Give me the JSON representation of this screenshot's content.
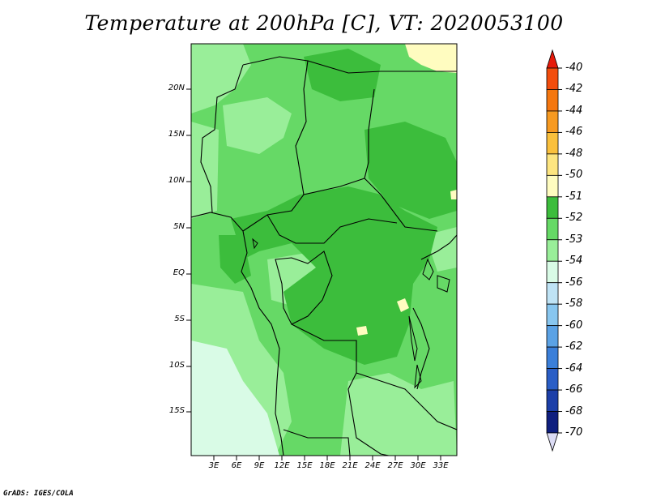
{
  "title": "Temperature at 200hPa [C], VT: 2020053100",
  "credit": "GrADS: IGES/COLA",
  "map": {
    "y_axis_labels": [
      "20N",
      "15N",
      "10N",
      "5N",
      "EQ",
      "5S",
      "10S",
      "15S"
    ],
    "x_axis_labels": [
      "3E",
      "6E",
      "9E",
      "12E",
      "15E",
      "18E",
      "21E",
      "24E",
      "27E",
      "30E",
      "33E"
    ]
  },
  "colorbar": {
    "labels": [
      "-40",
      "-42",
      "-44",
      "-46",
      "-48",
      "-50",
      "-51",
      "-52",
      "-53",
      "-54",
      "-56",
      "-58",
      "-60",
      "-62",
      "-64",
      "-66",
      "-68",
      "-70"
    ],
    "colors": [
      "#e61a0a",
      "#f24d0d",
      "#f5770f",
      "#f79a21",
      "#fac03c",
      "#fde580",
      "#fffcc0",
      "#3cbd3c",
      "#66d966",
      "#99ee99",
      "#d9fbe6",
      "#bfe3f5",
      "#88c6ef",
      "#5ba2e5",
      "#3b7fd9",
      "#2a5ec6",
      "#1c3fa8",
      "#0f1f7f",
      "#dcdcf5"
    ]
  },
  "colors": {
    "green_dark": "#3cbd3c",
    "green_mid": "#66d966",
    "green_light": "#99ee99",
    "cyan_pale": "#d9fbe6",
    "yellow": "#fffcc0"
  }
}
